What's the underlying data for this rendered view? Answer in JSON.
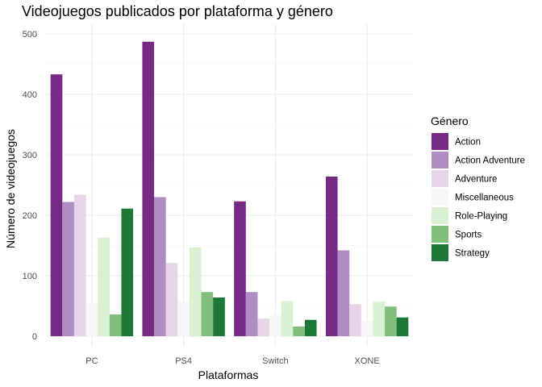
{
  "chart_data": {
    "type": "bar",
    "title": "Videojuegos publicados por plataforma y género",
    "xlabel": "Plataformas",
    "ylabel": "Número de videojuegos",
    "categories": [
      "PC",
      "PS4",
      "Switch",
      "XONE"
    ],
    "ylim": [
      0,
      510
    ],
    "yticks": [
      0,
      100,
      200,
      300,
      400,
      500
    ],
    "grid": true,
    "legend_title": "Género",
    "legend_position": "right",
    "series": [
      {
        "name": "Action",
        "color": "#762a83",
        "values": [
          433,
          487,
          223,
          264
        ]
      },
      {
        "name": "Action Adventure",
        "color": "#af8dc3",
        "values": [
          222,
          230,
          73,
          142
        ]
      },
      {
        "name": "Adventure",
        "color": "#e7d4e8",
        "values": [
          234,
          121,
          29,
          53
        ]
      },
      {
        "name": "Miscellaneous",
        "color": "#f7f7f7",
        "values": [
          55,
          57,
          35,
          25
        ]
      },
      {
        "name": "Role-Playing",
        "color": "#d9f0d3",
        "values": [
          163,
          147,
          58,
          57
        ]
      },
      {
        "name": "Sports",
        "color": "#7fbf7b",
        "values": [
          36,
          73,
          16,
          49
        ]
      },
      {
        "name": "Strategy",
        "color": "#1b7837",
        "values": [
          211,
          64,
          27,
          31
        ]
      }
    ]
  }
}
